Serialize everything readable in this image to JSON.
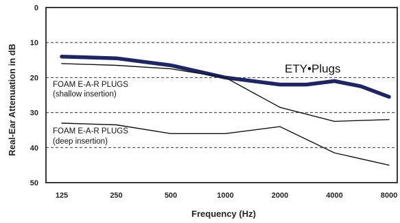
{
  "chart_data": {
    "type": "line",
    "title": "",
    "xlabel": "Frequency (Hz)",
    "ylabel": "Real-Ear Attenuation in dB",
    "x_categories": [
      "125",
      "250",
      "500",
      "1000",
      "2000",
      "4000",
      "8000"
    ],
    "ylim": [
      0,
      50
    ],
    "y_inverted": true,
    "y_ticks": [
      0,
      10,
      20,
      30,
      40,
      50
    ],
    "grid": "horizontal-dashed",
    "colors": {
      "ety": "#1f2560",
      "foam": "#111111",
      "grid": "#333333"
    },
    "series": [
      {
        "name": "ETY•Plugs",
        "style": "thick",
        "points": [
          [
            125,
            14
          ],
          [
            250,
            14.5
          ],
          [
            500,
            16.5
          ],
          [
            1000,
            20
          ],
          [
            2000,
            22
          ],
          [
            2800,
            22
          ],
          [
            4000,
            21
          ],
          [
            5600,
            22.5
          ],
          [
            8000,
            25.5
          ]
        ]
      },
      {
        "name": "FOAM E-A-R PLUGS (shallow insertion)",
        "style": "thin",
        "points": [
          [
            125,
            16
          ],
          [
            250,
            16.5
          ],
          [
            500,
            17.5
          ],
          [
            1000,
            20
          ],
          [
            2000,
            28.5
          ],
          [
            4000,
            32.5
          ],
          [
            8000,
            32
          ]
        ]
      },
      {
        "name": "FOAM E-A-R PLUGS (deep insertion)",
        "style": "thin",
        "points": [
          [
            125,
            33
          ],
          [
            250,
            33.5
          ],
          [
            500,
            36
          ],
          [
            1000,
            36
          ],
          [
            2000,
            34
          ],
          [
            4000,
            41.5
          ],
          [
            8000,
            45
          ]
        ]
      }
    ],
    "annotations": {
      "ety_label": "ETY•Plugs",
      "shallow_line1": "FOAM E-A-R PLUGS",
      "shallow_line2": "(shallow insertion)",
      "deep_line1": "FOAM E-A-R PLUGS",
      "deep_line2": "(deep insertion)"
    }
  }
}
